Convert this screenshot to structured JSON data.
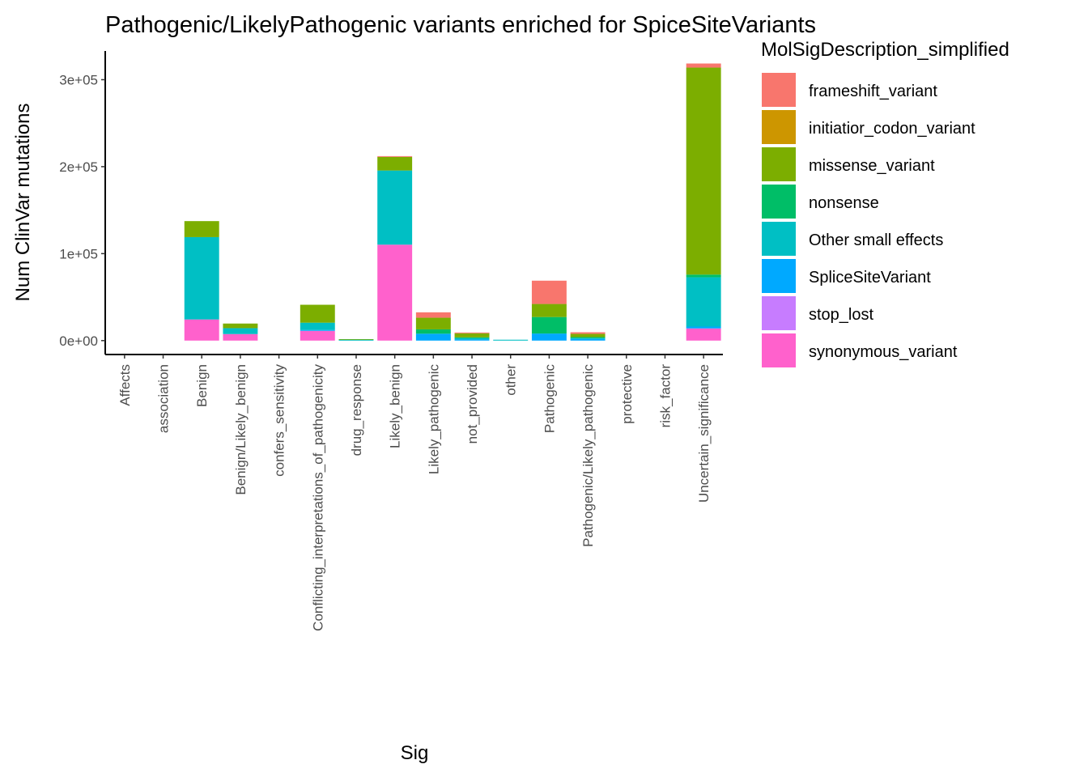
{
  "chart_data": {
    "type": "bar",
    "stacked": true,
    "title": "Pathogenic/LikelyPathogenic variants enriched for SpiceSiteVariants",
    "xlabel": "Sig",
    "ylabel": "Num ClinVar mutations",
    "ylim": [
      -16000,
      333000
    ],
    "yticks": [
      0,
      100000,
      200000,
      300000
    ],
    "ytick_labels": [
      "0e+00",
      "1e+05",
      "2e+05",
      "3e+05"
    ],
    "grid": false,
    "legend_title": "MolSigDescription_simplified",
    "legend_position": "right",
    "categories": [
      "Affects",
      "association",
      "Benign",
      "Benign/Likely_benign",
      "confers_sensitivity",
      "Conflicting_interpretations_of_pathogenicity",
      "drug_response",
      "Likely_benign",
      "Likely_pathogenic",
      "not_provided",
      "other",
      "Pathogenic",
      "Pathogenic/Likely_pathogenic",
      "protective",
      "risk_factor",
      "Uncertain_significance"
    ],
    "series": [
      {
        "name": "frameshift_variant",
        "color": "#F8766D",
        "values": [
          0,
          0,
          0,
          0,
          0,
          0,
          0,
          900,
          6200,
          900,
          0,
          26800,
          1900,
          0,
          0,
          4700
        ]
      },
      {
        "name": "initiatior_codon_variant",
        "color": "#CD9600",
        "values": [
          0,
          0,
          0,
          0,
          0,
          0,
          0,
          0,
          0,
          0,
          0,
          0,
          0,
          0,
          0,
          0
        ]
      },
      {
        "name": "missense_variant",
        "color": "#7CAE00",
        "values": [
          0,
          0,
          18400,
          5300,
          0,
          20600,
          500,
          15600,
          13400,
          4700,
          0,
          15000,
          3700,
          0,
          0,
          238000
        ]
      },
      {
        "name": "nonsense",
        "color": "#00BE67",
        "values": [
          0,
          0,
          0,
          0,
          0,
          0,
          0,
          0,
          5000,
          500,
          0,
          19000,
          1000,
          0,
          0,
          3100
        ]
      },
      {
        "name": "Other small effects",
        "color": "#00BFC4",
        "values": [
          0,
          0,
          94700,
          6800,
          0,
          8400,
          1200,
          85300,
          0,
          1900,
          1000,
          0,
          1000,
          0,
          0,
          56700
        ]
      },
      {
        "name": "SpliceSiteVariant",
        "color": "#00A9FF",
        "values": [
          0,
          0,
          0,
          0,
          0,
          1000,
          0,
          0,
          7900,
          1300,
          0,
          8100,
          2000,
          0,
          0,
          2100
        ]
      },
      {
        "name": "stop_lost",
        "color": "#C77CFF",
        "values": [
          0,
          0,
          0,
          0,
          0,
          0,
          0,
          0,
          0,
          0,
          0,
          0,
          0,
          0,
          0,
          0
        ]
      },
      {
        "name": "synonymous_variant",
        "color": "#FF61CC",
        "values": [
          0,
          0,
          24300,
          7500,
          0,
          11200,
          0,
          110300,
          0,
          0,
          0,
          0,
          0,
          0,
          0,
          14000
        ]
      }
    ]
  }
}
